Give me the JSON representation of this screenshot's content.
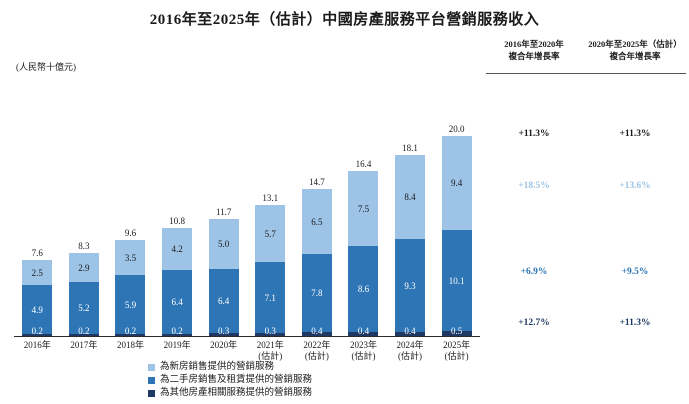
{
  "title": "2016年至2025年（估計）中國房產服務平台營銷服務收入",
  "unit_note": "(人民幣十億元)",
  "cagr_panel": {
    "columns": [
      {
        "header_line1": "2016年至2020年",
        "header_line2": "複合年增長率"
      },
      {
        "header_line1": "2020年至2025年（估計）",
        "header_line2": "複合年增長率"
      }
    ],
    "total_row": [
      "+11.3%",
      "+11.3%"
    ],
    "new_home_row": [
      "+18.5%",
      "+13.6%"
    ],
    "secondhand_row": [
      "+6.9%",
      "+9.5%"
    ],
    "other_row": [
      "+12.7%",
      "+11.3%"
    ]
  },
  "chart_data": {
    "type": "bar",
    "stacked": true,
    "unit": "人民幣十億元",
    "categories": [
      "2016年",
      "2017年",
      "2018年",
      "2019年",
      "2020年",
      "2021年",
      "2022年",
      "2023年",
      "2024年",
      "2025年"
    ],
    "estimated_suffix": "(估計)",
    "estimated_from_index": 5,
    "series": [
      {
        "key": "new-home",
        "name": "為新房銷售提供的營銷服務",
        "color": "#9DC3E6",
        "label_color": "#1a1a1a",
        "values": [
          2.5,
          2.9,
          3.5,
          4.2,
          5.0,
          5.7,
          6.5,
          7.5,
          8.4,
          9.4
        ]
      },
      {
        "key": "secondhand",
        "name": "為二手房銷售及租賃提供的營銷服務",
        "color": "#2E75B6",
        "label_color": "#ffffff",
        "values": [
          4.9,
          5.2,
          5.9,
          6.4,
          6.4,
          7.1,
          7.8,
          8.6,
          9.3,
          10.1
        ]
      },
      {
        "key": "other",
        "name": "為其他房產相關服務提供的營銷服務",
        "color": "#1F3864",
        "label_color": "#ffffff",
        "values": [
          0.2,
          0.2,
          0.2,
          0.2,
          0.3,
          0.3,
          0.4,
          0.4,
          0.4,
          0.5
        ]
      }
    ],
    "totals": [
      7.6,
      8.3,
      9.6,
      10.8,
      11.7,
      13.1,
      14.7,
      16.4,
      18.1,
      20.0
    ],
    "ylim": [
      0,
      20
    ],
    "legend_position": "bottom"
  },
  "legend": [
    {
      "label": "為新房銷售提供的營銷服務",
      "color": "#9DC3E6"
    },
    {
      "label": "為二手房銷售及租賃提供的營銷服務",
      "color": "#2E75B6"
    },
    {
      "label": "為其他房產相關服務提供的營銷服務",
      "color": "#1F3864"
    }
  ]
}
